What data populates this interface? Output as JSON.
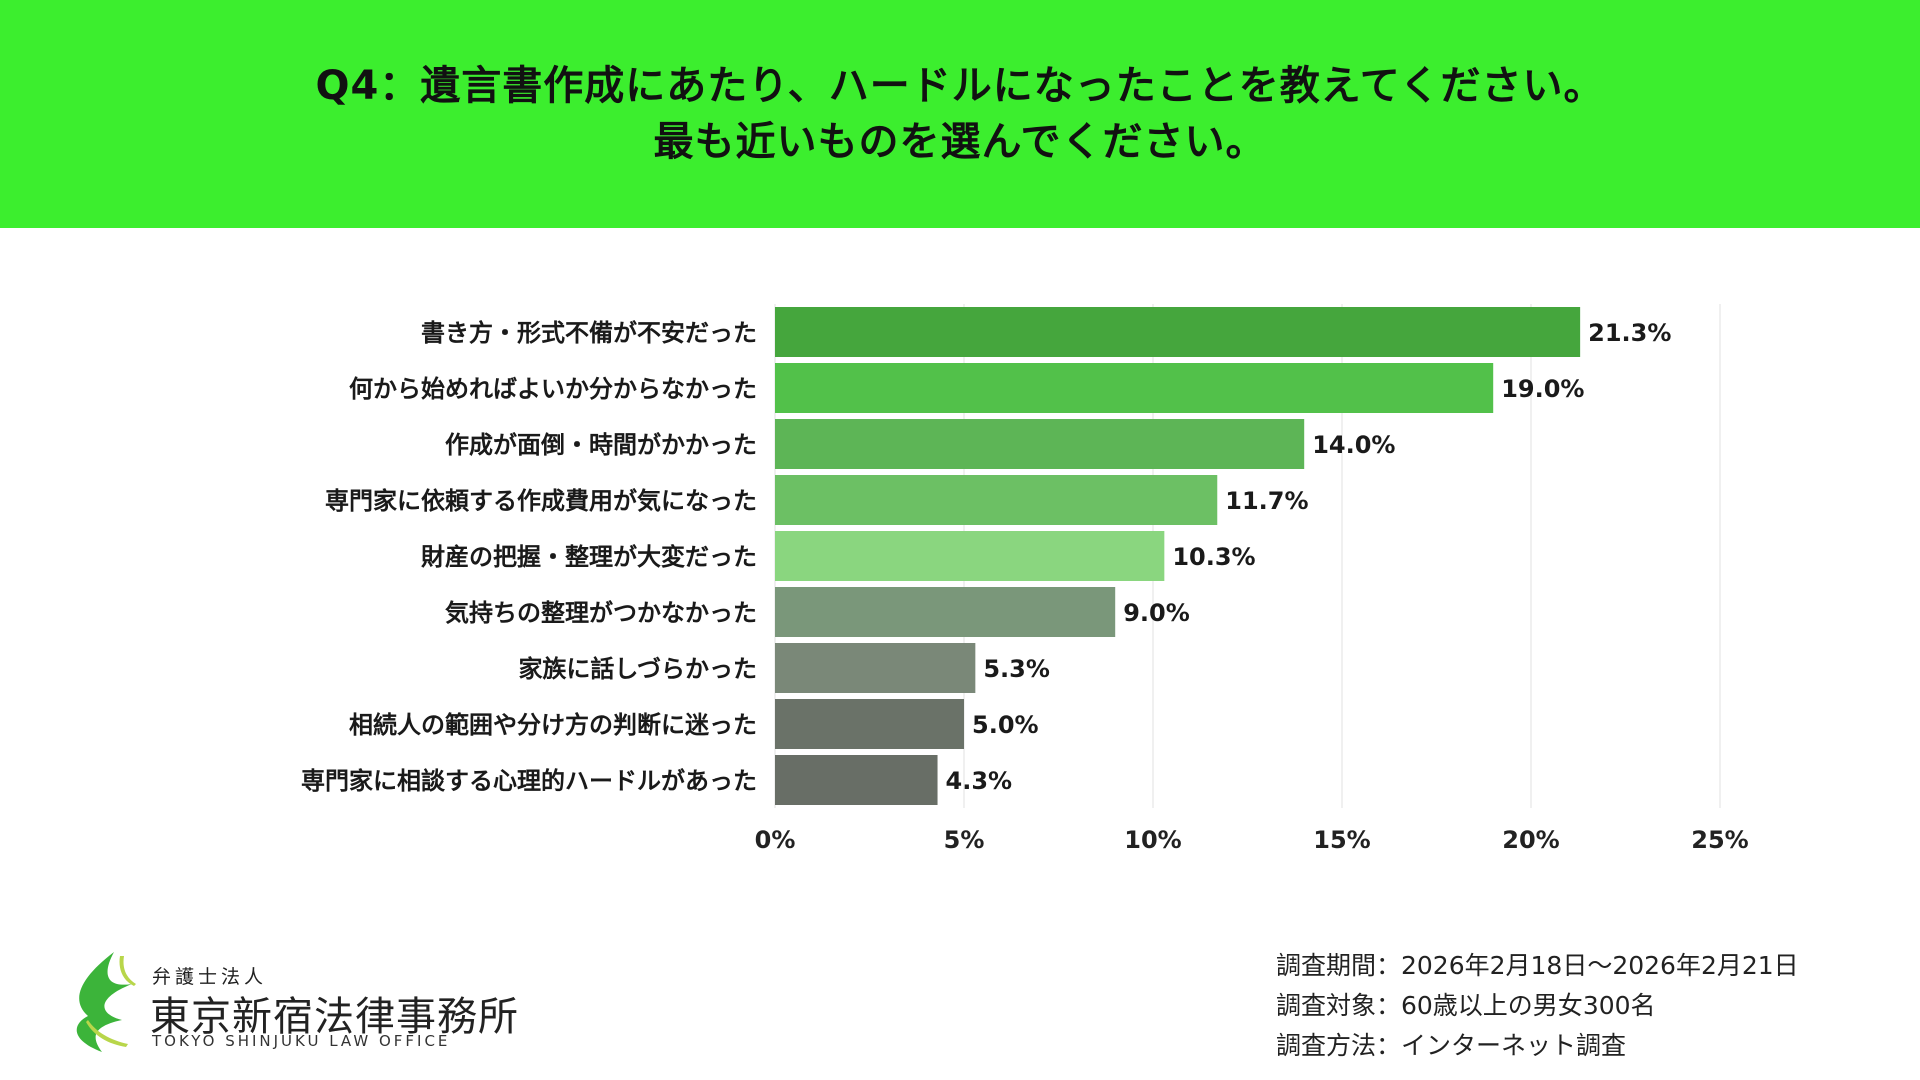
{
  "header": {
    "line1": "Q4：遺言書作成にあたり、ハードルになったことを教えてください。",
    "line2": "最も近いものを選んでください。"
  },
  "colors": {
    "header_bg": "#3cee2e",
    "bars": [
      "#45a63d",
      "#52c14a",
      "#5db556",
      "#6cc064",
      "#8ad67f",
      "#7a977a",
      "#7a8878",
      "#6a7268",
      "#686e66"
    ]
  },
  "chart_data": {
    "type": "bar",
    "orientation": "horizontal",
    "title": "Q4：遺言書作成にあたり、ハードルになったことを教えてください。最も近いものを選んでください。",
    "categories": [
      "書き方・形式不備が不安だった",
      "何から始めればよいか分からなかった",
      "作成が面倒・時間がかかった",
      "専門家に依頼する作成費用が気になった",
      "財産の把握・整理が大変だった",
      "気持ちの整理がつかなかった",
      "家族に話しづらかった",
      "相続人の範囲や分け方の判断に迷った",
      "専門家に相談する心理的ハードルがあった"
    ],
    "values": [
      21.3,
      19.0,
      14.0,
      11.7,
      10.3,
      9.0,
      5.3,
      5.0,
      4.3
    ],
    "value_labels": [
      "21.3%",
      "19.0%",
      "14.0%",
      "11.7%",
      "10.3%",
      "9.0%",
      "5.3%",
      "5.0%",
      "4.3%"
    ],
    "xlim": [
      0,
      25
    ],
    "xticks": [
      0,
      5,
      10,
      15,
      20,
      25
    ],
    "xtick_labels": [
      "0%",
      "5%",
      "10%",
      "15%",
      "20%",
      "25%"
    ],
    "xlabel": "",
    "ylabel": "",
    "grid": true
  },
  "logo": {
    "small": "弁護士法人",
    "name": "東京新宿法律事務所",
    "en": "TOKYO SHINJUKU LAW OFFICE"
  },
  "survey": {
    "period": "調査期間：2026年2月18日～2026年2月21日",
    "target": "調査対象：60歳以上の男女300名",
    "method": "調査方法：インターネット調査"
  }
}
